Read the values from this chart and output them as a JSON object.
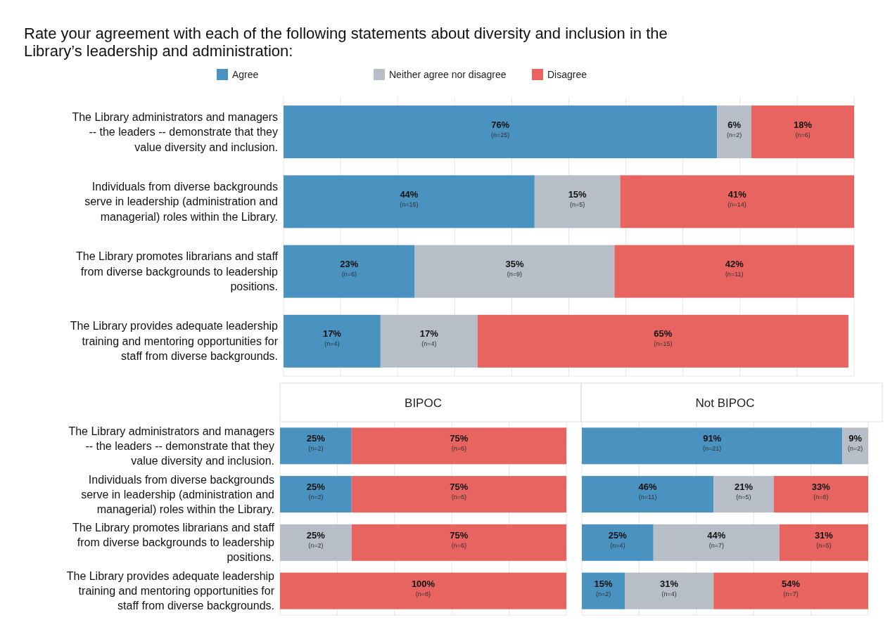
{
  "chart_data": [
    {
      "type": "bar",
      "orientation": "horizontal",
      "stacked": true,
      "title": "Rate your agreement with each of the following statements about diversity and inclusion in the Library’s leadership and administration:",
      "categories": [
        "The Library administrators and managers -- the leaders -- demonstrate that they value diversity and inclusion.",
        "Individuals from diverse backgrounds serve in leadership (administration and managerial) roles within the Library.",
        "The Library promotes librarians and staff from diverse backgrounds to leadership positions.",
        "The Library provides adequate leadership training and mentoring opportunities for staff from diverse backgrounds."
      ],
      "series": [
        {
          "name": "Agree",
          "color": "#4a92c0",
          "values": [
            76,
            44,
            23,
            17
          ],
          "value_labels": [
            "76%\n(n=25)",
            "44%\n(n=15)",
            "23%\n(n=6)",
            "17%\n(n=4)"
          ]
        },
        {
          "name": "Neither agree nor disagree",
          "color": "#b8bec8",
          "values": [
            6,
            15,
            35,
            17
          ],
          "value_labels": [
            "6%\n(n=2)",
            "15%\n(n=5)",
            "35%\n(n=9)",
            "17%\n(n=4)"
          ]
        },
        {
          "name": "Disagree",
          "color": "#e86461",
          "values": [
            18,
            41,
            42,
            65
          ],
          "value_labels": [
            "18%\n(n=6)",
            "41%\n(n=14)",
            "42%\n(n=11)",
            "65%\n(n=15)"
          ]
        }
      ],
      "xlim": [
        0,
        100
      ],
      "xticks": [
        {
          "value": 0,
          "label": null
        },
        {
          "value": 10,
          "label": null
        },
        {
          "value": 20,
          "label": null
        },
        {
          "value": 30,
          "label": null
        },
        {
          "value": 40,
          "label": null
        },
        {
          "value": 50,
          "label": null
        },
        {
          "value": 60,
          "label": null
        },
        {
          "value": 70,
          "label": null
        },
        {
          "value": 80,
          "label": null
        },
        {
          "value": 90,
          "label": null
        },
        {
          "value": 100,
          "label": null
        }
      ],
      "grid": "x",
      "legend": "top",
      "tick_labels": "y"
    },
    {
      "type": "bar",
      "orientation": "horizontal",
      "stacked": true,
      "title": "BIPOC",
      "categories": [
        "The Library administrators and managers -- the leaders -- demonstrate that they value diversity and inclusion.",
        "Individuals from diverse backgrounds serve in leadership (administration and managerial) roles within the Library.",
        "The Library promotes librarians and staff from diverse backgrounds to leadership positions.",
        "The Library provides adequate leadership training and mentoring opportunities for staff from diverse backgrounds."
      ],
      "series": [
        {
          "color": "#4a92c0",
          "values": [
            25,
            25,
            null,
            null
          ],
          "value_labels": [
            "25%\n(n=2)",
            "25%\n(n=2)",
            null,
            null
          ]
        },
        {
          "color": "#b8bec8",
          "values": [
            null,
            null,
            25,
            null
          ],
          "value_labels": [
            null,
            null,
            "25%\n(n=2)",
            null
          ]
        },
        {
          "color": "#e86461",
          "values": [
            75,
            75,
            75,
            100
          ],
          "value_labels": [
            "75%\n(n=6)",
            "75%\n(n=6)",
            "75%\n(n=6)",
            "100%\n(n=8)"
          ]
        }
      ],
      "xlim": [
        0,
        100
      ],
      "xticks": [
        {
          "value": 0,
          "label": null
        },
        {
          "value": 20,
          "label": null
        },
        {
          "value": 40,
          "label": null
        },
        {
          "value": 60,
          "label": null
        },
        {
          "value": 80,
          "label": null
        },
        {
          "value": 100,
          "label": null
        }
      ],
      "grid": "x",
      "tick_labels": "y"
    },
    {
      "type": "bar",
      "orientation": "horizontal",
      "stacked": true,
      "title": "Not BIPOC",
      "categories": [
        null,
        null,
        null,
        null
      ],
      "series": [
        {
          "color": "#4a92c0",
          "values": [
            91,
            46,
            25,
            15
          ],
          "value_labels": [
            "91%\n(n=21)",
            "46%\n(n=11)",
            "25%\n(n=4)",
            "15%\n(n=2)"
          ]
        },
        {
          "color": "#b8bec8",
          "values": [
            9,
            21,
            44,
            31
          ],
          "value_labels": [
            "9%\n(n=2)",
            "21%\n(n=5)",
            "44%\n(n=7)",
            "31%\n(n=4)"
          ]
        },
        {
          "color": "#e86461",
          "values": [
            null,
            33,
            31,
            54
          ],
          "value_labels": [
            null,
            "33%\n(n=8)",
            "31%\n(n=5)",
            "54%\n(n=7)"
          ]
        }
      ],
      "xlim": [
        0,
        100
      ],
      "xticks": [
        {
          "value": 0,
          "label": null
        },
        {
          "value": 20,
          "label": null
        },
        {
          "value": 40,
          "label": null
        },
        {
          "value": 60,
          "label": null
        },
        {
          "value": 80,
          "label": null
        },
        {
          "value": 100,
          "label": null
        }
      ],
      "grid": "x",
      "tick_labels": false
    }
  ]
}
